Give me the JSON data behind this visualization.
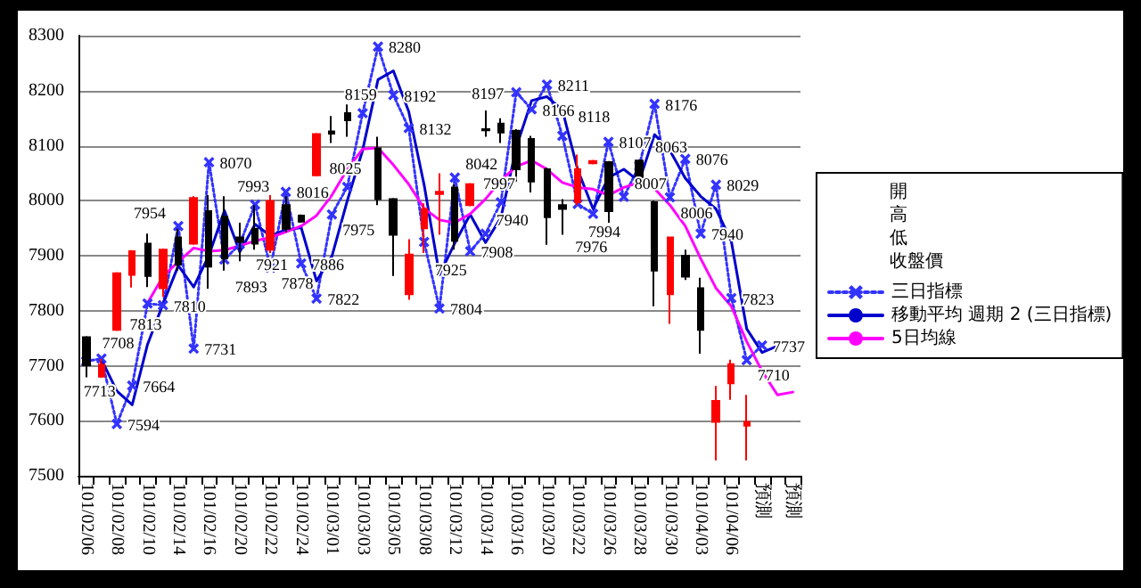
{
  "chart_data": {
    "type": "candlestick",
    "categories": [
      "101/02/06",
      null,
      "101/02/08",
      null,
      "101/02/10",
      null,
      "101/02/14",
      null,
      "101/02/16",
      null,
      "101/02/20",
      null,
      "101/02/22",
      null,
      "101/02/24",
      null,
      "101/03/01",
      null,
      "101/03/03",
      null,
      "101/03/05",
      null,
      "101/03/08",
      null,
      "101/03/12",
      null,
      "101/03/14",
      null,
      "101/03/16",
      null,
      "101/03/20",
      null,
      "101/03/22",
      null,
      "101/03/26",
      null,
      "101/03/28",
      null,
      "101/03/30",
      null,
      "101/04/03",
      null,
      "101/04/06",
      null,
      "預測",
      null,
      "預測"
    ],
    "ohlc": [
      [
        7752,
        7754,
        7679,
        7701
      ],
      [
        7680,
        7712,
        7678,
        7702
      ],
      [
        7765,
        7870,
        7763,
        7868
      ],
      [
        7865,
        7910,
        7842,
        7908
      ],
      [
        7922,
        7940,
        7843,
        7863
      ],
      [
        7841,
        7913,
        7825,
        7911
      ],
      [
        7933,
        7949,
        7873,
        7884
      ],
      [
        7922,
        8008,
        7920,
        8005
      ],
      [
        7981,
        8010,
        7840,
        7880
      ],
      [
        7971,
        8008,
        7873,
        7895
      ],
      [
        7933,
        7960,
        7890,
        7925
      ],
      [
        7949,
        7992,
        7911,
        7922
      ],
      [
        7911,
        8010,
        7905,
        7999
      ],
      [
        7992,
        8008,
        7943,
        7949
      ],
      [
        7973,
        7975,
        7960,
        7962
      ],
      [
        8046,
        8123,
        8044,
        8121
      ],
      [
        8126,
        8154,
        8105,
        8122
      ],
      [
        8159,
        8175,
        8116,
        8146
      ],
      null,
      [
        8095,
        8116,
        7992,
        8003
      ],
      [
        8003,
        8005,
        7863,
        7938
      ],
      [
        7830,
        7930,
        7820,
        7902
      ],
      [
        7950,
        7995,
        7905,
        7985
      ],
      [
        8012,
        8050,
        7938,
        8016
      ],
      [
        8024,
        8030,
        7911,
        7927
      ],
      [
        7992,
        8032,
        7990,
        8030
      ],
      [
        8130,
        8164,
        8116,
        8128
      ],
      [
        8140,
        8150,
        8105,
        8124
      ],
      [
        8127,
        8130,
        8035,
        8057
      ],
      [
        8112,
        8118,
        8015,
        8035
      ],
      [
        8057,
        8060,
        7920,
        7970
      ],
      [
        7992,
        8003,
        7938,
        7985
      ],
      [
        7997,
        8084,
        7992,
        8057
      ],
      [
        8068,
        8074,
        8066,
        8072
      ],
      [
        8070,
        8072,
        7960,
        7981
      ],
      null,
      [
        8073,
        8075,
        8030,
        8035
      ],
      [
        7997,
        8000,
        7808,
        7873
      ],
      [
        7830,
        7935,
        7776,
        7933
      ],
      [
        7900,
        7911,
        7856,
        7862
      ],
      [
        7841,
        7860,
        7722,
        7765
      ],
      [
        7598,
        7663,
        7528,
        7636
      ],
      [
        7668,
        7711,
        7638,
        7703
      ],
      [
        7591,
        7647,
        7528,
        7598
      ],
      null,
      null,
      null
    ],
    "colors": [
      "#000000",
      "#ff0000",
      "#ff0000",
      "#ff0000",
      "#000000",
      "#ff0000",
      "#000000",
      "#ff0000",
      "#000000",
      "#000000",
      "#000000",
      "#000000",
      "#ff0000",
      "#000000",
      "#000000",
      "#ff0000",
      "#000000",
      "#000000",
      null,
      "#000000",
      "#000000",
      "#ff0000",
      "#ff0000",
      "#ff0000",
      "#000000",
      "#ff0000",
      "#000000",
      "#000000",
      "#000000",
      "#000000",
      "#000000",
      "#000000",
      "#ff0000",
      "#ff0000",
      "#000000",
      null,
      "#000000",
      "#000000",
      "#ff0000",
      "#000000",
      "#000000",
      "#ff0000",
      "#ff0000",
      "#ff0000",
      null,
      null,
      null
    ],
    "series": [
      {
        "name": "三日指標",
        "type": "line",
        "color": "#3333ff",
        "marker": "cross",
        "line_style": "dotted",
        "values": [
          7708,
          7713,
          7594,
          7664,
          7813,
          7810,
          7954,
          7731,
          8070,
          7893,
          7921,
          7993,
          7878,
          8016,
          7886,
          7822,
          7975,
          8025,
          8159,
          8280,
          8192,
          8132,
          7925,
          7804,
          8042,
          7908,
          7940,
          7997,
          8197,
          8166,
          8211,
          8118,
          7994,
          7976,
          8107,
          8007,
          8063,
          8176,
          8006,
          8076,
          7940,
          8029,
          7823,
          7710,
          7737,
          null,
          null
        ],
        "value_labels": [
          "7708",
          "7713",
          "7594",
          "7664",
          "7813",
          "7810",
          "7954",
          "7731",
          "8070",
          "7893",
          "7921",
          "7993",
          "7878",
          "8016",
          "7886",
          "7822",
          "7975",
          "8025",
          "8159",
          "8280",
          "8192",
          "8132",
          "7925",
          "7804",
          "8042",
          "7908",
          "7940",
          "7997",
          "8197",
          "8166",
          "8211",
          "8118",
          "7994",
          "7976",
          "8107",
          "8007",
          "8063",
          "8176",
          "8006",
          "8076",
          "7940",
          "8029",
          "7823",
          "7710",
          "7737",
          null,
          null
        ]
      },
      {
        "name": "移動平均 週期 2 (三日指標)",
        "type": "line",
        "color": "#0000cc",
        "marker": "none",
        "line_style": "solid",
        "values": [
          null,
          7711,
          7654,
          7629,
          7739,
          7812,
          7882,
          7843,
          7901,
          7982,
          7907,
          7957,
          7936,
          7947,
          7951,
          7854,
          7899,
          8000,
          8092,
          8220,
          8236,
          8162,
          8029,
          7865,
          7923,
          7975,
          7924,
          7969,
          8097,
          8182,
          8189,
          8165,
          8056,
          7985,
          8042,
          8057,
          8035,
          8120,
          8091,
          8041,
          8008,
          7985,
          7926,
          7767,
          7724,
          7736,
          null
        ]
      },
      {
        "name": "5日均線",
        "type": "line",
        "color": "#ff00ff",
        "marker": "none",
        "line_style": "solid",
        "values": [
          null,
          null,
          null,
          null,
          7814,
          7862,
          7889,
          7914,
          7908,
          7910,
          7918,
          7927,
          7933,
          7943,
          7954,
          7973,
          8010,
          8057,
          8094,
          8096,
          8065,
          8030,
          7986,
          7965,
          7960,
          7976,
          8003,
          8037,
          8062,
          8073,
          8057,
          8033,
          8024,
          8021,
          8010,
          8024,
          8033,
          8022,
          7992,
          7954,
          7895,
          7841,
          7808,
          7744,
          7690,
          7647,
          7652
        ]
      }
    ],
    "annotations": [
      "開",
      "高",
      "低",
      "收盤價"
    ],
    "ylim": [
      7500,
      8300
    ],
    "yticks": [
      7500,
      7600,
      7700,
      7800,
      7900,
      8000,
      8100,
      8200,
      8300
    ],
    "grid": "y",
    "legend": "right"
  }
}
